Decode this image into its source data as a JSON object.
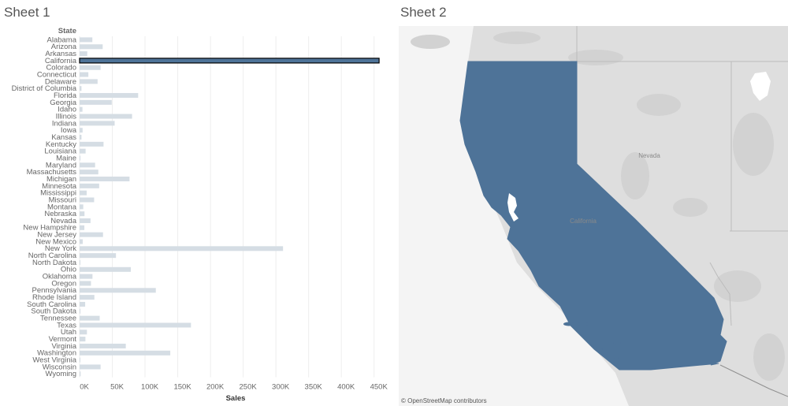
{
  "sheet1": {
    "title": "Sheet 1"
  },
  "sheet2": {
    "title": "Sheet 2",
    "map": {
      "state_labels": [
        "Nevada",
        "California"
      ],
      "attribution": "© OpenStreetMap contributors",
      "highlight_color": "#4e7398",
      "background_color": "#dedede"
    }
  },
  "colors": {
    "bar": "#d5dde4",
    "bar_selected": "#4e7398",
    "gridline": "#eeeeee"
  },
  "chart_data": {
    "type": "bar",
    "orientation": "horizontal",
    "row_header": "State",
    "xlabel": "Sales",
    "xlim": [
      0,
      460000
    ],
    "xticks": [
      0,
      50000,
      100000,
      150000,
      200000,
      250000,
      300000,
      350000,
      400000,
      450000
    ],
    "xtick_labels": [
      "0K",
      "50K",
      "100K",
      "150K",
      "200K",
      "250K",
      "300K",
      "350K",
      "400K",
      "450K"
    ],
    "selected": "California",
    "categories": [
      "Alabama",
      "Arizona",
      "Arkansas",
      "California",
      "Colorado",
      "Connecticut",
      "Delaware",
      "District of Columbia",
      "Florida",
      "Georgia",
      "Idaho",
      "Illinois",
      "Indiana",
      "Iowa",
      "Kansas",
      "Kentucky",
      "Louisiana",
      "Maine",
      "Maryland",
      "Massachusetts",
      "Michigan",
      "Minnesota",
      "Mississippi",
      "Missouri",
      "Montana",
      "Nebraska",
      "Nevada",
      "New Hampshire",
      "New Jersey",
      "New Mexico",
      "New York",
      "North Carolina",
      "North Dakota",
      "Ohio",
      "Oklahoma",
      "Oregon",
      "Pennsylvania",
      "Rhode Island",
      "South Carolina",
      "South Dakota",
      "Tennessee",
      "Texas",
      "Utah",
      "Vermont",
      "Virginia",
      "Washington",
      "West Virginia",
      "Wisconsin",
      "Wyoming"
    ],
    "values": [
      19500,
      35300,
      11700,
      457700,
      32100,
      13400,
      27500,
      2900,
      89500,
      49100,
      4400,
      80200,
      53600,
      4600,
      2900,
      36600,
      9200,
      1300,
      23700,
      28600,
      76300,
      29900,
      10800,
      22200,
      5600,
      7500,
      16700,
      7300,
      35800,
      4800,
      310900,
      55600,
      900,
      78300,
      19700,
      17400,
      116500,
      22600,
      8500,
      1300,
      30700,
      170200,
      11200,
      8900,
      70600,
      138600,
      1200,
      32100,
      1600
    ]
  }
}
